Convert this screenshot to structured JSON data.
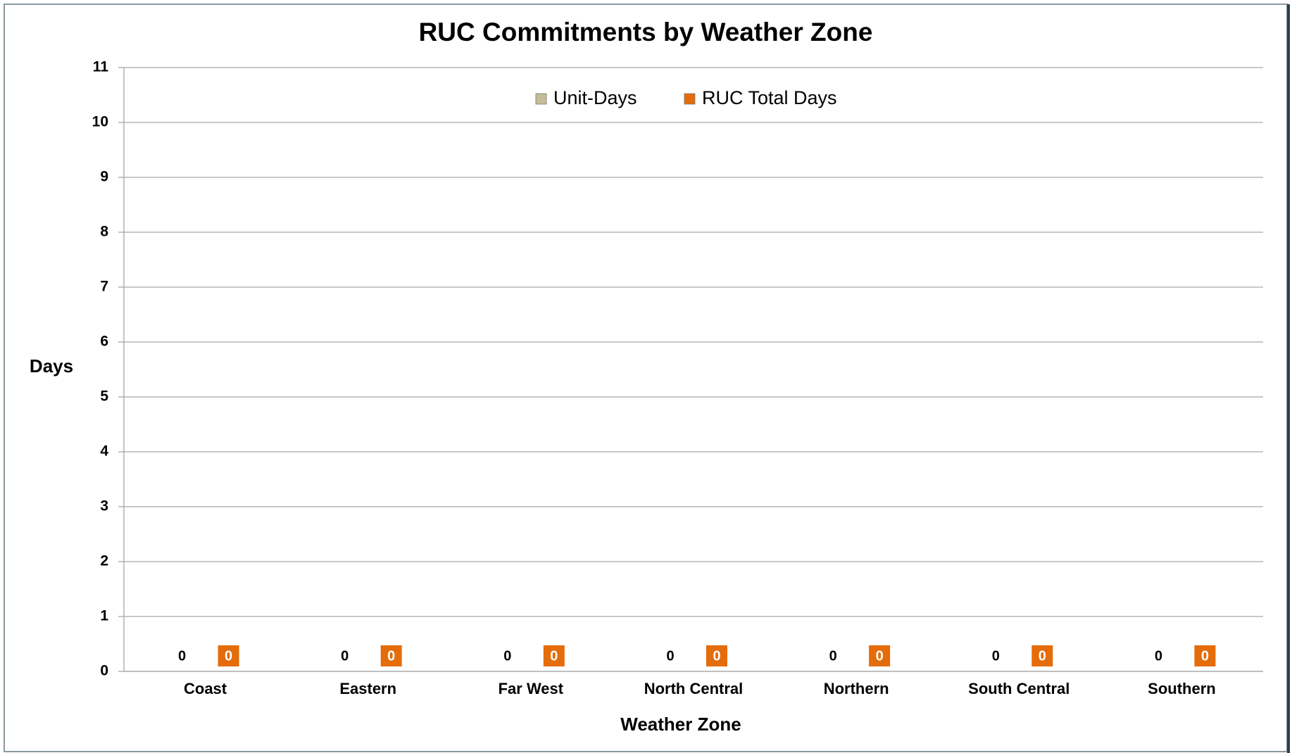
{
  "chart_data": {
    "type": "bar",
    "title": "RUC Commitments by Weather Zone",
    "x_label": "Weather Zone",
    "y_label": "Days",
    "categories": [
      "Coast",
      "Eastern",
      "Far West",
      "North Central",
      "Northern",
      "South Central",
      "Southern"
    ],
    "series": [
      {
        "name": "Unit-Days",
        "color": "#c4bd97",
        "values": [
          0,
          0,
          0,
          0,
          0,
          0,
          0
        ]
      },
      {
        "name": "RUC Total Days",
        "color": "#e46c0a",
        "values": [
          0,
          0,
          0,
          0,
          0,
          0,
          0
        ]
      }
    ],
    "ylim": [
      0,
      11
    ],
    "yticks": [
      0,
      1,
      2,
      3,
      4,
      5,
      6,
      7,
      8,
      9,
      10,
      11
    ],
    "grid": true,
    "legend": "top"
  }
}
